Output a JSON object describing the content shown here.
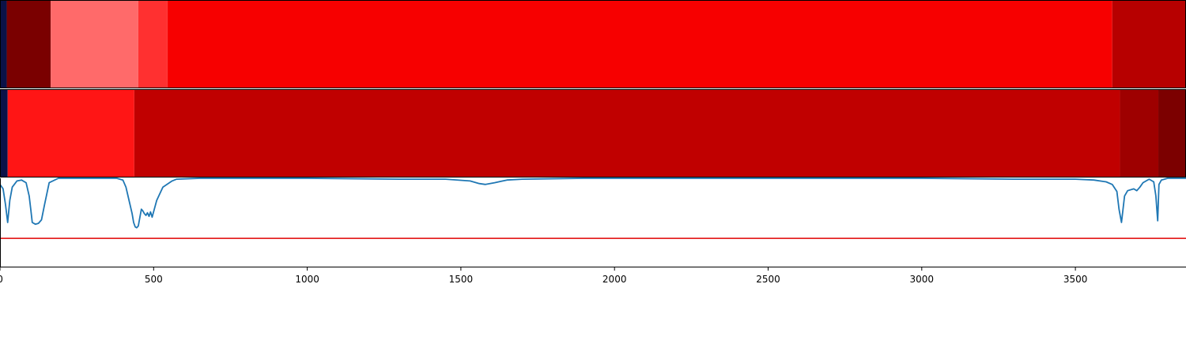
{
  "chart_data": {
    "type": "heatmap",
    "x_range": [
      0,
      3860
    ],
    "x_ticks": [
      0,
      500,
      1000,
      1500,
      2000,
      2500,
      3000,
      3500
    ],
    "x_tick_labels": [
      "0",
      "500",
      "1000",
      "1500",
      "2000",
      "2500",
      "3000",
      "3500"
    ],
    "strips": [
      {
        "segments": [
          {
            "start": 0,
            "end": 22,
            "color": "#0a1248"
          },
          {
            "start": 22,
            "end": 165,
            "color": "#7a0000"
          },
          {
            "start": 165,
            "end": 450,
            "color": "#ff6a6a"
          },
          {
            "start": 450,
            "end": 545,
            "color": "#ff3030"
          },
          {
            "start": 545,
            "end": 3620,
            "color": "#f70000"
          },
          {
            "start": 3620,
            "end": 3860,
            "color": "#b70000"
          }
        ]
      },
      {
        "segments": [
          {
            "start": 0,
            "end": 25,
            "color": "#0a1248"
          },
          {
            "start": 25,
            "end": 437,
            "color": "#ff1515"
          },
          {
            "start": 437,
            "end": 3645,
            "color": "#c00000"
          },
          {
            "start": 3645,
            "end": 3770,
            "color": "#9e0000"
          },
          {
            "start": 3770,
            "end": 3860,
            "color": "#7c0000"
          }
        ]
      }
    ],
    "line_panel": {
      "y_range": [
        0,
        1
      ],
      "threshold": 0.32,
      "threshold_color": "#e00000",
      "line_color": "#1f77b4",
      "x": [
        0,
        10,
        18,
        25,
        32,
        40,
        55,
        70,
        85,
        95,
        100,
        105,
        115,
        125,
        135,
        145,
        160,
        190,
        250,
        300,
        380,
        400,
        410,
        420,
        430,
        435,
        440,
        445,
        450,
        460,
        465,
        470,
        475,
        480,
        485,
        490,
        495,
        510,
        530,
        560,
        575,
        650,
        800,
        1000,
        1300,
        1450,
        1530,
        1560,
        1580,
        1610,
        1650,
        1700,
        1900,
        2200,
        2600,
        3000,
        3300,
        3500,
        3560,
        3600,
        3620,
        3635,
        3642,
        3650,
        3660,
        3670,
        3690,
        3700,
        3710,
        3720,
        3740,
        3755,
        3762,
        3768,
        3772,
        3780,
        3800,
        3860
      ],
      "y": [
        0.93,
        0.88,
        0.7,
        0.5,
        0.75,
        0.9,
        0.97,
        0.98,
        0.95,
        0.8,
        0.65,
        0.5,
        0.48,
        0.49,
        0.53,
        0.7,
        0.95,
        1.0,
        1.0,
        1.0,
        1.0,
        0.98,
        0.9,
        0.75,
        0.6,
        0.5,
        0.45,
        0.44,
        0.46,
        0.65,
        0.63,
        0.6,
        0.58,
        0.61,
        0.57,
        0.62,
        0.56,
        0.75,
        0.9,
        0.97,
        0.99,
        1.0,
        1.0,
        1.0,
        0.99,
        0.99,
        0.97,
        0.94,
        0.93,
        0.95,
        0.98,
        0.99,
        1.0,
        1.0,
        1.0,
        1.0,
        0.99,
        0.99,
        0.98,
        0.96,
        0.93,
        0.85,
        0.65,
        0.5,
        0.8,
        0.86,
        0.88,
        0.86,
        0.9,
        0.95,
        0.99,
        0.96,
        0.8,
        0.52,
        0.93,
        0.98,
        1.0,
        1.0
      ]
    }
  }
}
